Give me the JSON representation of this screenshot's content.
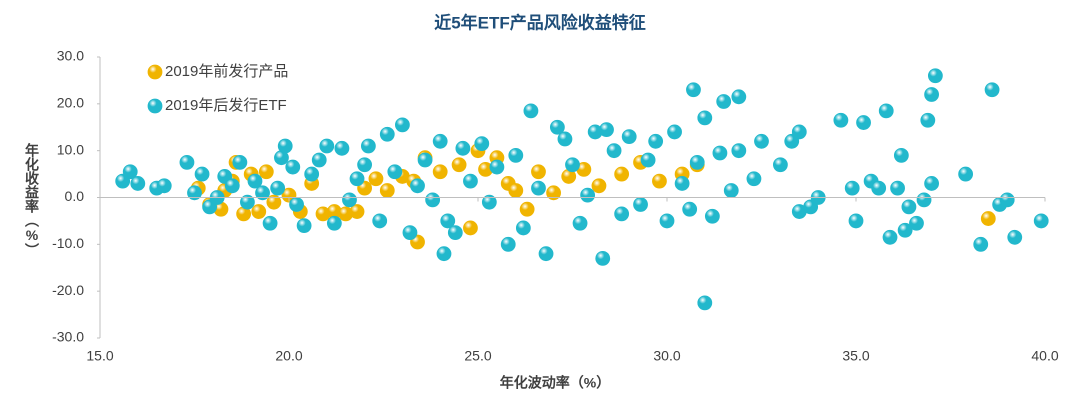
{
  "chart_data": {
    "type": "scatter",
    "title": "近5年ETF产品风险收益特征",
    "x_label": "年化波动率（%）",
    "y_label": "年化收益率（%）",
    "xlim": [
      15,
      40
    ],
    "xticks": [
      {
        "value": 15,
        "label": "15.0"
      },
      {
        "value": 20,
        "label": "20.0"
      },
      {
        "value": 25,
        "label": "25.0"
      },
      {
        "value": 30,
        "label": "30.0"
      },
      {
        "value": 35,
        "label": "35.0"
      },
      {
        "value": 40,
        "label": "40.0"
      }
    ],
    "ylim": [
      -30,
      30
    ],
    "yticks": [
      {
        "value": -30,
        "label": "-30.0"
      },
      {
        "value": -20,
        "label": "-20.0"
      },
      {
        "value": -10,
        "label": "-10.0"
      },
      {
        "value": 0,
        "label": "0.0"
      },
      {
        "value": 10,
        "label": "10.0"
      },
      {
        "value": 20,
        "label": "20.0"
      },
      {
        "value": 30,
        "label": "30.0"
      }
    ],
    "legend": "top-left",
    "series": [
      {
        "name": "2019年前发行产品",
        "color": "#f0b400",
        "x": [
          17.6,
          17.9,
          18.2,
          18.3,
          18.5,
          18.6,
          18.8,
          19.0,
          19.2,
          19.4,
          19.6,
          20.0,
          20.3,
          20.6,
          20.9,
          21.2,
          21.5,
          21.8,
          22.0,
          22.3,
          22.6,
          23.0,
          23.3,
          23.4,
          23.6,
          24.0,
          24.5,
          24.8,
          25.0,
          25.2,
          25.5,
          25.8,
          26.0,
          26.3,
          26.6,
          27.0,
          27.4,
          27.8,
          28.2,
          28.8,
          29.3,
          29.8,
          30.4,
          30.8,
          38.5
        ],
        "values": [
          2.0,
          -1.5,
          -2.5,
          1.5,
          3.5,
          7.5,
          -3.5,
          5.0,
          -3.0,
          5.5,
          -1.0,
          0.5,
          -3.0,
          3.0,
          -3.5,
          -3.0,
          -3.5,
          -3.0,
          2.0,
          4.0,
          1.5,
          4.5,
          3.5,
          -9.5,
          8.5,
          5.5,
          7.0,
          -6.5,
          10.0,
          6.0,
          8.5,
          3.0,
          1.5,
          -2.5,
          5.5,
          1.0,
          4.5,
          6.0,
          2.5,
          5.0,
          7.5,
          3.5,
          5.0,
          7.0,
          -4.5
        ]
      },
      {
        "name": "2019年后发行ETF",
        "color": "#22b8cc",
        "x": [
          15.6,
          15.8,
          16.0,
          16.5,
          16.7,
          17.3,
          17.5,
          17.7,
          17.9,
          18.1,
          18.3,
          18.5,
          18.7,
          18.9,
          19.1,
          19.3,
          19.5,
          19.7,
          19.8,
          19.9,
          20.1,
          20.2,
          20.4,
          20.6,
          20.8,
          21.0,
          21.2,
          21.4,
          21.6,
          21.8,
          22.0,
          22.1,
          22.4,
          22.6,
          22.8,
          23.0,
          23.2,
          23.4,
          23.6,
          23.8,
          24.0,
          24.1,
          24.2,
          24.4,
          24.6,
          24.8,
          25.1,
          25.3,
          25.5,
          25.8,
          26.0,
          26.2,
          26.4,
          26.6,
          26.8,
          27.1,
          27.3,
          27.5,
          27.7,
          27.9,
          28.1,
          28.3,
          28.4,
          28.6,
          28.8,
          29.0,
          29.3,
          29.5,
          29.7,
          30.0,
          30.2,
          30.4,
          30.6,
          30.8,
          31.0,
          30.7,
          31.2,
          31.4,
          31.0,
          31.7,
          31.9,
          31.5,
          32.3,
          32.5,
          31.9,
          33.0,
          33.3,
          33.5,
          33.5,
          33.8,
          34.0,
          34.6,
          34.9,
          35.0,
          35.2,
          35.4,
          35.6,
          35.8,
          35.9,
          36.1,
          36.2,
          36.3,
          36.4,
          36.6,
          36.8,
          36.9,
          37.0,
          37.1,
          37.0,
          37.9,
          38.3,
          38.6,
          38.8,
          39.0,
          39.2,
          39.9
        ],
        "values": [
          3.5,
          5.5,
          3.0,
          2.0,
          2.5,
          7.5,
          1.0,
          5.0,
          -2.0,
          0.0,
          4.5,
          2.5,
          7.5,
          -1.0,
          3.5,
          1.0,
          -5.5,
          2.0,
          8.5,
          11.0,
          6.5,
          -1.5,
          -6.0,
          5.0,
          8.0,
          11.0,
          -5.5,
          10.5,
          -0.5,
          4.0,
          7.0,
          11.0,
          -5.0,
          13.5,
          5.5,
          15.5,
          -7.5,
          2.5,
          8.0,
          -0.5,
          12.0,
          -12.0,
          -5.0,
          -7.5,
          10.5,
          3.5,
          11.5,
          -1.0,
          6.5,
          -10.0,
          9.0,
          -6.5,
          18.5,
          2.0,
          -12.0,
          15.0,
          12.5,
          7.0,
          -5.5,
          0.5,
          14.0,
          -13.0,
          14.5,
          10.0,
          -3.5,
          13.0,
          -1.5,
          8.0,
          12.0,
          -5.0,
          14.0,
          3.0,
          -2.5,
          7.5,
          17.0,
          23.0,
          -4.0,
          9.5,
          -22.5,
          1.5,
          10.0,
          20.5,
          4.0,
          12.0,
          21.5,
          7.0,
          12.0,
          14.0,
          -3.0,
          -2.0,
          0.0,
          16.5,
          2.0,
          -5.0,
          16.0,
          3.5,
          2.0,
          18.5,
          -8.5,
          2.0,
          9.0,
          -7.0,
          -2.0,
          -5.5,
          -0.5,
          16.5,
          22.0,
          26.0,
          3.0,
          5.0,
          -10.0,
          23.0,
          -1.5,
          -0.5,
          -8.5,
          -5.0
        ]
      }
    ]
  }
}
